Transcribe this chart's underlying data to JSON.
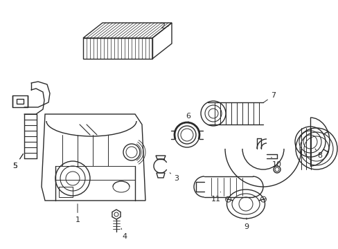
{
  "background_color": "#ffffff",
  "line_color": "#2a2a2a",
  "line_width": 1.0,
  "label_fontsize": 8,
  "figsize": [
    4.89,
    3.6
  ],
  "dpi": 100
}
